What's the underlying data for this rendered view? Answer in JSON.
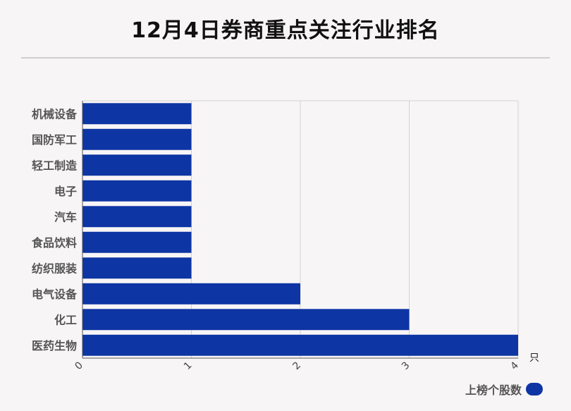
{
  "header": {
    "title": "12月4日券商重点关注行业排名"
  },
  "colors": {
    "bar": "#0d35a3",
    "grid": "#d2d2d2",
    "axis": "#555555",
    "category_text": "#555555"
  },
  "chart_data": {
    "type": "bar",
    "orientation": "horizontal",
    "categories": [
      "机械设备",
      "国防军工",
      "轻工制造",
      "电子",
      "汽车",
      "食品饮料",
      "纺织服装",
      "电气设备",
      "化工",
      "医药生物"
    ],
    "series": [
      {
        "name": "上榜个股数",
        "values": [
          1,
          1,
          1,
          1,
          1,
          1,
          1,
          2,
          3,
          4
        ]
      }
    ],
    "xlim": [
      0,
      4
    ],
    "xticks": [
      "0",
      "1",
      "2",
      "3",
      "4"
    ],
    "x_unit": "只",
    "grid": true,
    "legend_position": "bottom-right"
  }
}
